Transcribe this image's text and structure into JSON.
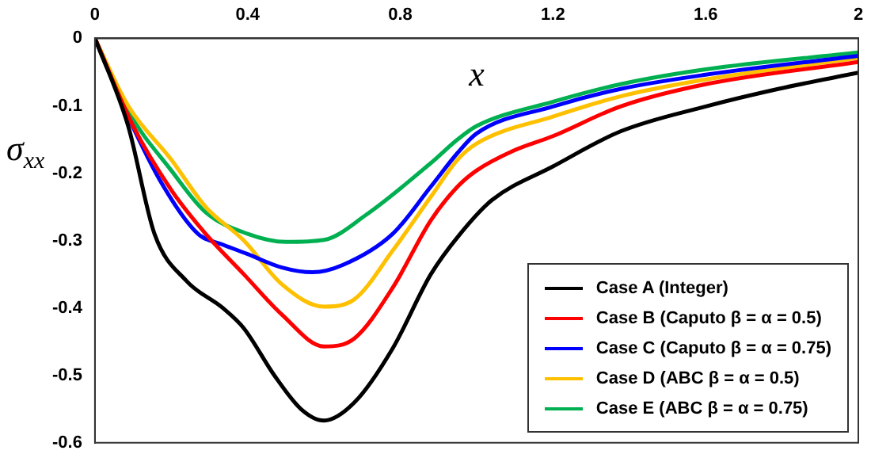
{
  "chart_data": {
    "type": "line",
    "xlabel": "x",
    "ylabel": "σ$_{xx}$",
    "xlim": [
      0,
      2
    ],
    "xticks": [
      0,
      0.4,
      0.8,
      1.2,
      1.6,
      2
    ],
    "ylim": [
      -0.6,
      0
    ],
    "yticks": [
      0,
      -0.1,
      -0.2,
      -0.3,
      -0.4,
      -0.5,
      -0.6
    ],
    "grid": false,
    "legend": "bottom right",
    "marker": "none",
    "line_style": "solid",
    "series": [
      {
        "name": "Case A (Integer)",
        "color": "#000000",
        "x": [
          0,
          0.087,
          0.156,
          0.24,
          0.335,
          0.39,
          0.47,
          0.54,
          0.6,
          0.68,
          0.78,
          0.88,
          0.957,
          1.04,
          1.2,
          1.377,
          1.6,
          1.79,
          2
        ],
        "values": [
          0,
          -0.13,
          -0.29,
          -0.36,
          -0.4,
          -0.43,
          -0.5,
          -0.55,
          -0.567,
          -0.54,
          -0.46,
          -0.35,
          -0.29,
          -0.24,
          -0.19,
          -0.138,
          -0.101,
          -0.075,
          -0.051
        ]
      },
      {
        "name": "Case B (Caputo β = α = 0.5)",
        "color": "#ff0000",
        "x": [
          0,
          0.1,
          0.2,
          0.29,
          0.39,
          0.49,
          0.6,
          0.68,
          0.78,
          0.88,
          0.95,
          1.0,
          1.095,
          1.2,
          1.377,
          1.6,
          2
        ],
        "values": [
          0,
          -0.13,
          -0.225,
          -0.29,
          -0.35,
          -0.41,
          -0.457,
          -0.445,
          -0.37,
          -0.27,
          -0.22,
          -0.196,
          -0.167,
          -0.145,
          -0.101,
          -0.068,
          -0.035
        ]
      },
      {
        "name": "Case C (Caputo β = α = 0.75)",
        "color": "#0000ff",
        "x": [
          0,
          0.087,
          0.18,
          0.27,
          0.335,
          0.4,
          0.49,
          0.57,
          0.65,
          0.78,
          0.88,
          0.95,
          1.0,
          1.2,
          1.377,
          1.6,
          2
        ],
        "values": [
          0,
          -0.116,
          -0.22,
          -0.29,
          -0.306,
          -0.32,
          -0.34,
          -0.347,
          -0.336,
          -0.29,
          -0.22,
          -0.17,
          -0.141,
          -0.101,
          -0.075,
          -0.054,
          -0.026
        ]
      },
      {
        "name": "Case D (ABC β = α = 0.5)",
        "color": "#ffc000",
        "x": [
          0,
          0.087,
          0.2,
          0.29,
          0.39,
          0.49,
          0.6,
          0.68,
          0.78,
          0.88,
          0.95,
          1.0,
          1.2,
          1.377,
          1.6,
          2
        ],
        "values": [
          0,
          -0.1,
          -0.18,
          -0.25,
          -0.3,
          -0.365,
          -0.398,
          -0.387,
          -0.315,
          -0.235,
          -0.18,
          -0.156,
          -0.116,
          -0.086,
          -0.061,
          -0.029
        ]
      },
      {
        "name": "Case E (ABC β = α = 0.75)",
        "color": "#00b050",
        "x": [
          0,
          0.087,
          0.2,
          0.29,
          0.4,
          0.5,
          0.6,
          0.71,
          0.88,
          0.95,
          1.0,
          1.2,
          1.377,
          1.6,
          2
        ],
        "values": [
          0,
          -0.108,
          -0.196,
          -0.258,
          -0.29,
          -0.302,
          -0.299,
          -0.262,
          -0.185,
          -0.15,
          -0.13,
          -0.094,
          -0.068,
          -0.046,
          -0.021
        ]
      }
    ]
  }
}
